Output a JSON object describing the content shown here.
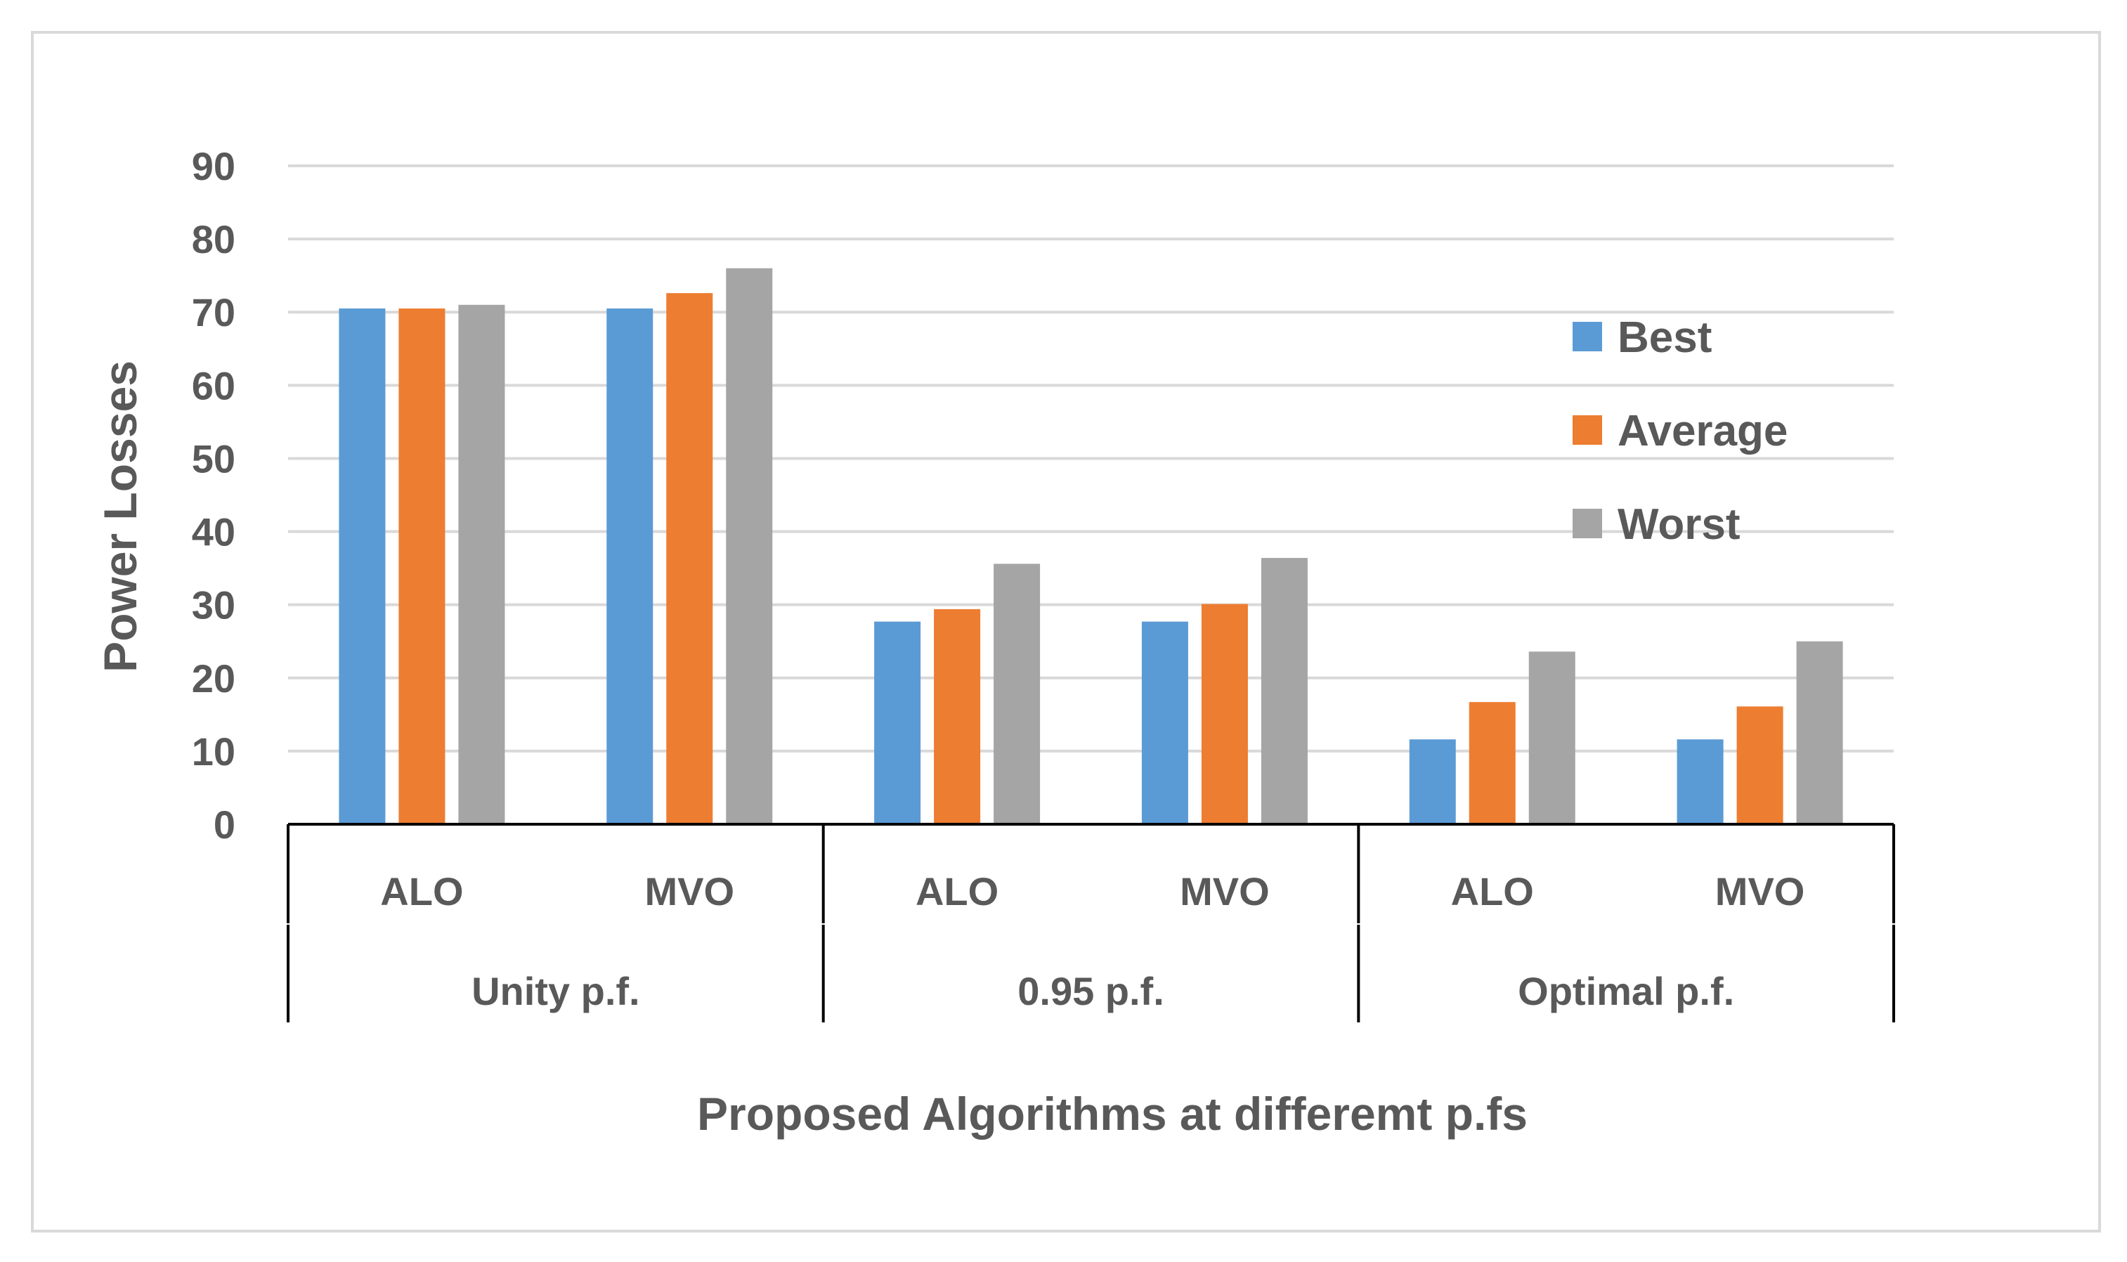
{
  "chart_data": {
    "type": "bar",
    "title": "",
    "xlabel": "Proposed Algorithms at differemt p.fs",
    "ylabel": "Power Losses",
    "ylim": [
      0,
      90
    ],
    "yticks": [
      0,
      10,
      20,
      30,
      40,
      50,
      60,
      70,
      80,
      90
    ],
    "grid": true,
    "legend_position": "right",
    "categories": [
      "ALO",
      "MVO",
      "ALO",
      "MVO",
      "ALO",
      "MVO"
    ],
    "groups": [
      {
        "label": "Unity p.f.",
        "categories": [
          "ALO",
          "MVO"
        ]
      },
      {
        "label": "0.95 p.f.",
        "categories": [
          "ALO",
          "MVO"
        ]
      },
      {
        "label": "Optimal p.f.",
        "categories": [
          "ALO",
          "MVO"
        ]
      }
    ],
    "series": [
      {
        "name": "Best",
        "color": "#5b9bd5",
        "values": [
          70.5,
          70.5,
          27.7,
          27.7,
          11.6,
          11.6
        ]
      },
      {
        "name": "Average",
        "color": "#ed7d31",
        "values": [
          70.5,
          72.6,
          29.4,
          30.1,
          16.7,
          16.1
        ]
      },
      {
        "name": "Worst",
        "color": "#a5a5a5",
        "values": [
          71.0,
          76.0,
          35.6,
          36.4,
          23.6,
          25.0
        ]
      }
    ]
  }
}
